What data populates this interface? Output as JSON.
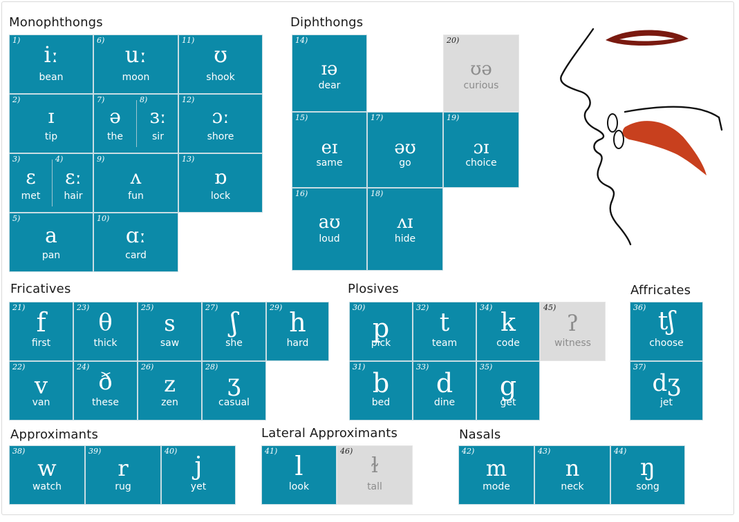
{
  "sections": {
    "monophthongs": "Monophthongs",
    "diphthongs": "Diphthongs",
    "fricatives": "Fricatives",
    "plosives": "Plosives",
    "affricates": "Affricates",
    "approximants": "Approximants",
    "lateral": "Lateral Approximants",
    "nasals": "Nasals"
  },
  "mono": [
    {
      "num": "1)",
      "sym": "iː",
      "word": "bean"
    },
    {
      "num": "6)",
      "sym": "uː",
      "word": "moon"
    },
    {
      "num": "11)",
      "sym": "ʊ",
      "word": "shook"
    },
    {
      "num": "2)",
      "sym": "ɪ",
      "word": "tip"
    },
    {
      "num": "7)",
      "sym": "ə",
      "word": "the"
    },
    {
      "num": "8)",
      "sym": "ɜː",
      "word": "sir"
    },
    {
      "num": "12)",
      "sym": "ɔː",
      "word": "shore"
    },
    {
      "num": "3)",
      "sym": "ɛ",
      "word": "met"
    },
    {
      "num": "4)",
      "sym": "ɛː",
      "word": "hair"
    },
    {
      "num": "9)",
      "sym": "ʌ",
      "word": "fun"
    },
    {
      "num": "13)",
      "sym": "ɒ",
      "word": "lock"
    },
    {
      "num": "5)",
      "sym": "a",
      "word": "pan"
    },
    {
      "num": "10)",
      "sym": "ɑː",
      "word": "card"
    }
  ],
  "diph": [
    {
      "num": "14)",
      "sym": "ɪə",
      "word": "dear"
    },
    {
      "num": "20)",
      "sym": "ʊə",
      "word": "curious"
    },
    {
      "num": "15)",
      "sym": "eɪ",
      "word": "same"
    },
    {
      "num": "17)",
      "sym": "əʊ",
      "word": "go"
    },
    {
      "num": "19)",
      "sym": "ɔɪ",
      "word": "choice"
    },
    {
      "num": "16)",
      "sym": "aʊ",
      "word": "loud"
    },
    {
      "num": "18)",
      "sym": "ʌɪ",
      "word": "hide"
    }
  ],
  "fric": [
    {
      "num": "21)",
      "sym": "f",
      "word": "first"
    },
    {
      "num": "23)",
      "sym": "θ",
      "word": "thick"
    },
    {
      "num": "25)",
      "sym": "s",
      "word": "saw"
    },
    {
      "num": "27)",
      "sym": "ʃ",
      "word": "she"
    },
    {
      "num": "29)",
      "sym": "h",
      "word": "hard"
    },
    {
      "num": "22)",
      "sym": "v",
      "word": "van"
    },
    {
      "num": "24)",
      "sym": "ð",
      "word": "these"
    },
    {
      "num": "26)",
      "sym": "z",
      "word": "zen"
    },
    {
      "num": "28)",
      "sym": "ʒ",
      "word": "casual"
    }
  ],
  "plos": [
    {
      "num": "30)",
      "sym": "p",
      "word": "pick"
    },
    {
      "num": "32)",
      "sym": "t",
      "word": "team"
    },
    {
      "num": "34)",
      "sym": "k",
      "word": "code"
    },
    {
      "num": "45)",
      "sym": "ʔ",
      "word": "witness"
    },
    {
      "num": "31)",
      "sym": "b",
      "word": "bed"
    },
    {
      "num": "33)",
      "sym": "d",
      "word": "dine"
    },
    {
      "num": "35)",
      "sym": "g",
      "word": "get"
    }
  ],
  "affr": [
    {
      "num": "36)",
      "sym": "tʃ",
      "word": "choose"
    },
    {
      "num": "37)",
      "sym": "dʒ",
      "word": "jet"
    }
  ],
  "appr": [
    {
      "num": "38)",
      "sym": "w",
      "word": "watch"
    },
    {
      "num": "39)",
      "sym": "r",
      "word": "rug"
    },
    {
      "num": "40)",
      "sym": "j",
      "word": "yet"
    }
  ],
  "lat": [
    {
      "num": "41)",
      "sym": "l",
      "word": "look"
    },
    {
      "num": "46)",
      "sym": "ɫ",
      "word": "tall"
    }
  ],
  "nas": [
    {
      "num": "42)",
      "sym": "m",
      "word": "mode"
    },
    {
      "num": "43)",
      "sym": "n",
      "word": "neck"
    },
    {
      "num": "44)",
      "sym": "ŋ",
      "word": "song"
    }
  ],
  "colors": {
    "tile": "#0c8aa8",
    "grey": "#dcdcdc",
    "lips": "#7a1a10",
    "tongue": "#c8401e"
  }
}
